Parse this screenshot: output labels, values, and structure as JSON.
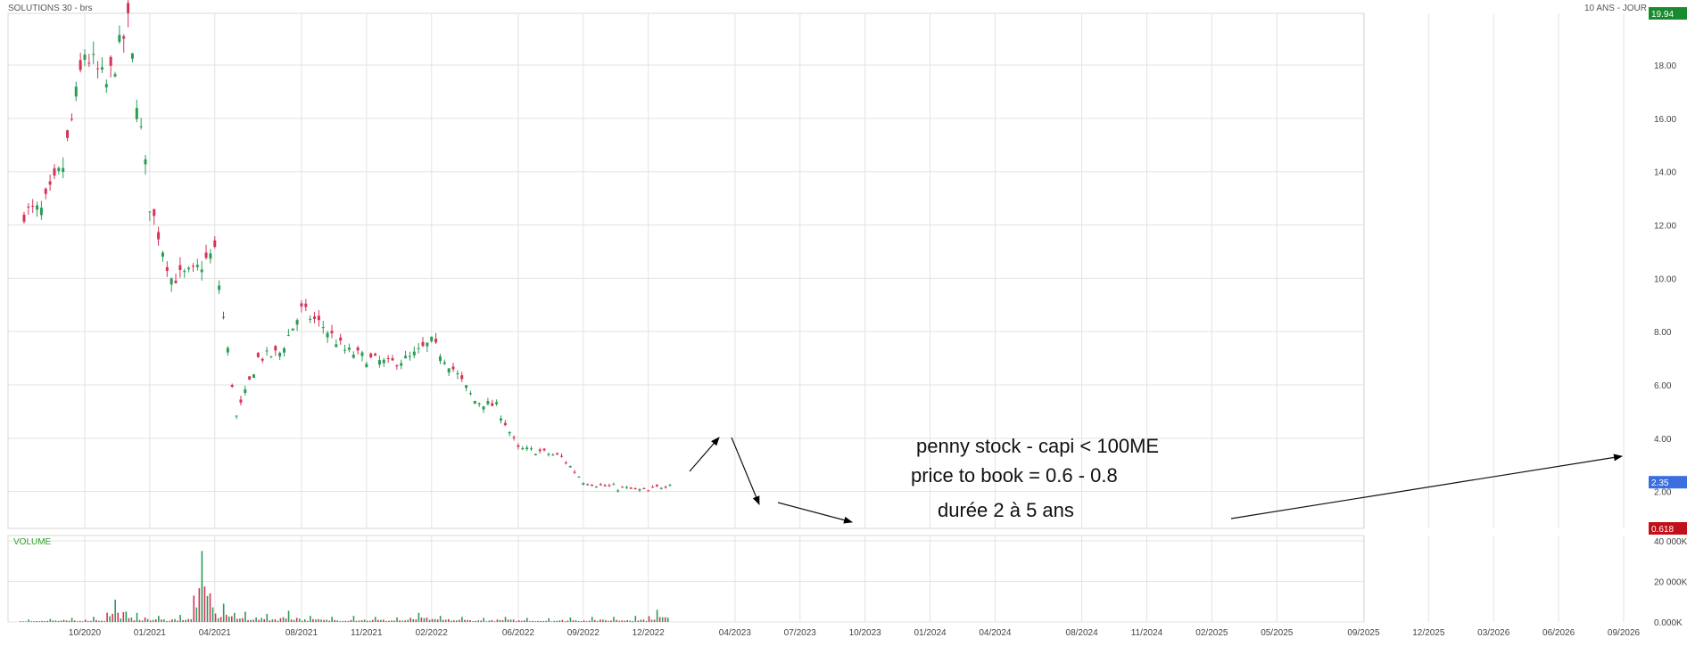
{
  "header": {
    "title": "SOLUTIONS 30 - brs",
    "period": "10 ANS - JOUR"
  },
  "volume_label": "VOLUME",
  "annotations": {
    "line1": "penny stock - capi < 100ME",
    "line2": "price to book = 0.6 - 0.8",
    "line3": "durée 2 à 5 ans"
  },
  "price_badges": {
    "high": "19.94",
    "last": "2.35",
    "low": "0.618"
  },
  "colors": {
    "up": "#2a9d55",
    "down": "#d63359",
    "grid": "#e3e3e3",
    "high_badge": "#1a8a2e",
    "last_badge": "#3b6fe0",
    "low_badge": "#c0101a",
    "volume_label": "#2aa02a"
  },
  "chart_data": [
    {
      "type": "candlestick",
      "title": "SOLUTIONS 30 - brs",
      "ylim": [
        0.618,
        19.94
      ],
      "y_ticks": [
        "2.00",
        "4.00",
        "6.00",
        "8.00",
        "10.00",
        "12.00",
        "14.00",
        "16.00",
        "18.00"
      ],
      "x_ticks": [
        "10/2020",
        "01/2021",
        "04/2021",
        "08/2021",
        "11/2021",
        "02/2022",
        "06/2022",
        "09/2022",
        "12/2022",
        "04/2023",
        "07/2023",
        "10/2023",
        "01/2024",
        "04/2024",
        "08/2024",
        "11/2024",
        "02/2025",
        "05/2025",
        "09/2025",
        "12/2025",
        "03/2026",
        "06/2026",
        "09/2026"
      ],
      "series": [
        {
          "dates": [
            "2020-08",
            "2020-09",
            "2020-10",
            "2020-11",
            "2020-12",
            "2021-01",
            "2021-02",
            "2021-03",
            "2021-04",
            "2021-05",
            "2021-06",
            "2021-07",
            "2021-08",
            "2021-09",
            "2021-10",
            "2021-11",
            "2021-12",
            "2022-01",
            "2022-02",
            "2022-03",
            "2022-04",
            "2022-05",
            "2022-06",
            "2022-07",
            "2022-08",
            "2022-09",
            "2022-10",
            "2022-11",
            "2022-12",
            "2023-01"
          ],
          "close": [
            12.5,
            14.2,
            18.5,
            17.2,
            19.5,
            12.8,
            10.0,
            10.2,
            11.0,
            4.8,
            7.0,
            7.2,
            8.8,
            8.2,
            7.3,
            7.0,
            6.8,
            7.0,
            7.6,
            6.6,
            5.4,
            5.2,
            3.6,
            3.5,
            3.3,
            2.4,
            2.2,
            2.1,
            2.0,
            2.35
          ]
        }
      ]
    },
    {
      "type": "bar",
      "title": "VOLUME",
      "ylim": [
        0,
        40000
      ],
      "y_ticks": [
        "0.000K",
        "20 000K",
        "40 000K"
      ],
      "dates": [
        "2020-08",
        "2020-09",
        "2020-10",
        "2020-11",
        "2020-12",
        "2021-01",
        "2021-02",
        "2021-03",
        "2021-04",
        "2021-05",
        "2021-06",
        "2021-07",
        "2021-08",
        "2021-09",
        "2021-10",
        "2021-11",
        "2021-12",
        "2022-01",
        "2022-02",
        "2022-03",
        "2022-04",
        "2022-05",
        "2022-06",
        "2022-07",
        "2022-08",
        "2022-09",
        "2022-10",
        "2022-11",
        "2022-12",
        "2023-01"
      ],
      "values": [
        1200,
        1500,
        2000,
        2500,
        11000,
        4500,
        3000,
        3500,
        35000,
        9000,
        5000,
        4000,
        5500,
        3000,
        2500,
        3000,
        2500,
        2200,
        4500,
        3000,
        2500,
        2000,
        2500,
        2000,
        1800,
        2200,
        2500,
        2500,
        3000,
        6000
      ]
    }
  ]
}
